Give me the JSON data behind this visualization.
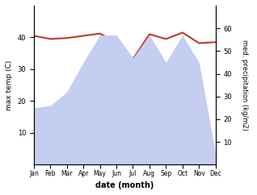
{
  "months": [
    "Jan",
    "Feb",
    "Mar",
    "Apr",
    "May",
    "Jun",
    "Jul",
    "Aug",
    "Sep",
    "Oct",
    "Nov",
    "Dec"
  ],
  "x": [
    0,
    1,
    2,
    3,
    4,
    5,
    6,
    7,
    8,
    9,
    10,
    11
  ],
  "max_temp": [
    40.5,
    39.5,
    39.8,
    40.5,
    41.2,
    38.5,
    33.2,
    41.0,
    39.5,
    41.5,
    38.2,
    38.5
  ],
  "precipitation": [
    25,
    26,
    32,
    45,
    57,
    57,
    47,
    57,
    45,
    57,
    45,
    5
  ],
  "temp_color": "#c0392b",
  "precip_fill_color": "#c5cef0",
  "ylabel_left": "max temp (C)",
  "ylabel_right": "med. precipitation (kg/m2)",
  "xlabel": "date (month)",
  "ylim_left": [
    0,
    50
  ],
  "ylim_right": [
    0,
    70
  ],
  "yticks_left": [
    10,
    20,
    30,
    40
  ],
  "yticks_right": [
    10,
    20,
    30,
    40,
    50,
    60
  ],
  "background_color": "#ffffff"
}
